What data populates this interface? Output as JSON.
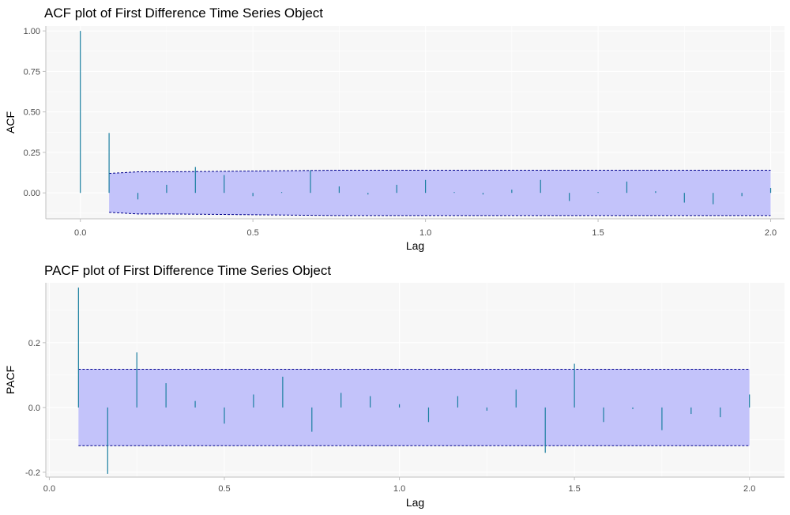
{
  "chart_data": [
    {
      "type": "bar",
      "id": "acf",
      "title": "ACF plot of First Difference Time Series Object",
      "xlabel": "Lag",
      "ylabel": "ACF",
      "xlim": [
        -0.1,
        2.04
      ],
      "ylim": [
        -0.16,
        1.03
      ],
      "xticks": [
        0.0,
        0.5,
        1.0,
        1.5,
        2.0
      ],
      "xtick_labels": [
        "0.0",
        "0.5",
        "1.0",
        "1.5",
        "2.0"
      ],
      "yticks": [
        0.0,
        0.25,
        0.5,
        0.75,
        1.0
      ],
      "ytick_labels": [
        "0.00",
        "0.25",
        "0.50",
        "0.75",
        "1.00"
      ],
      "grid": true,
      "bar_color": "#1a7fa0",
      "band_color": "#c3c3fa",
      "bound_color": "#00008b",
      "lags": [
        0.0,
        0.0833,
        0.1667,
        0.25,
        0.3333,
        0.4167,
        0.5,
        0.5833,
        0.6667,
        0.75,
        0.8333,
        0.9167,
        1.0,
        1.0833,
        1.1667,
        1.25,
        1.3333,
        1.4167,
        1.5,
        1.5833,
        1.6667,
        1.75,
        1.8333,
        1.9167,
        2.0
      ],
      "values": [
        1.0,
        0.37,
        -0.04,
        0.05,
        0.16,
        0.11,
        -0.02,
        0.005,
        0.14,
        0.04,
        -0.01,
        0.05,
        0.08,
        0.005,
        -0.01,
        0.02,
        0.08,
        -0.05,
        0.005,
        0.07,
        0.01,
        -0.06,
        -0.07,
        -0.02,
        0.03
      ],
      "bound_x": [
        0.0833,
        0.1667,
        0.25,
        0.5,
        0.75,
        1.0,
        1.5,
        2.0
      ],
      "upper_bound": [
        0.12,
        0.13,
        0.13,
        0.135,
        0.14,
        0.14,
        0.14,
        0.14
      ],
      "lower_bound": [
        -0.12,
        -0.13,
        -0.13,
        -0.135,
        -0.14,
        -0.14,
        -0.14,
        -0.14
      ]
    },
    {
      "type": "bar",
      "id": "pacf",
      "title": "PACF plot of First Difference Time Series Object",
      "xlabel": "Lag",
      "ylabel": "PACF",
      "xlim": [
        -0.01,
        2.1
      ],
      "ylim": [
        -0.215,
        0.385
      ],
      "xticks": [
        0.0,
        0.5,
        1.0,
        1.5,
        2.0
      ],
      "xtick_labels": [
        "0.0",
        "0.5",
        "1.0",
        "1.5",
        "2.0"
      ],
      "yticks": [
        -0.2,
        0.0,
        0.2
      ],
      "ytick_labels": [
        "-0.2",
        "0.0",
        "0.2"
      ],
      "grid": true,
      "bar_color": "#1a7fa0",
      "band_color": "#c3c3fa",
      "bound_color": "#00008b",
      "lags": [
        0.0833,
        0.1667,
        0.25,
        0.3333,
        0.4167,
        0.5,
        0.5833,
        0.6667,
        0.75,
        0.8333,
        0.9167,
        1.0,
        1.0833,
        1.1667,
        1.25,
        1.3333,
        1.4167,
        1.5,
        1.5833,
        1.6667,
        1.75,
        1.8333,
        1.9167,
        2.0
      ],
      "values": [
        0.37,
        -0.205,
        0.17,
        0.075,
        0.02,
        -0.05,
        0.04,
        0.095,
        -0.075,
        0.045,
        0.035,
        0.01,
        -0.045,
        0.035,
        -0.01,
        0.055,
        -0.14,
        0.135,
        -0.045,
        -0.005,
        -0.07,
        -0.02,
        -0.03,
        0.04
      ],
      "bound_x": [
        0.0833,
        2.0
      ],
      "upper_bound": [
        0.118,
        0.118
      ],
      "lower_bound": [
        -0.118,
        -0.118
      ]
    }
  ]
}
